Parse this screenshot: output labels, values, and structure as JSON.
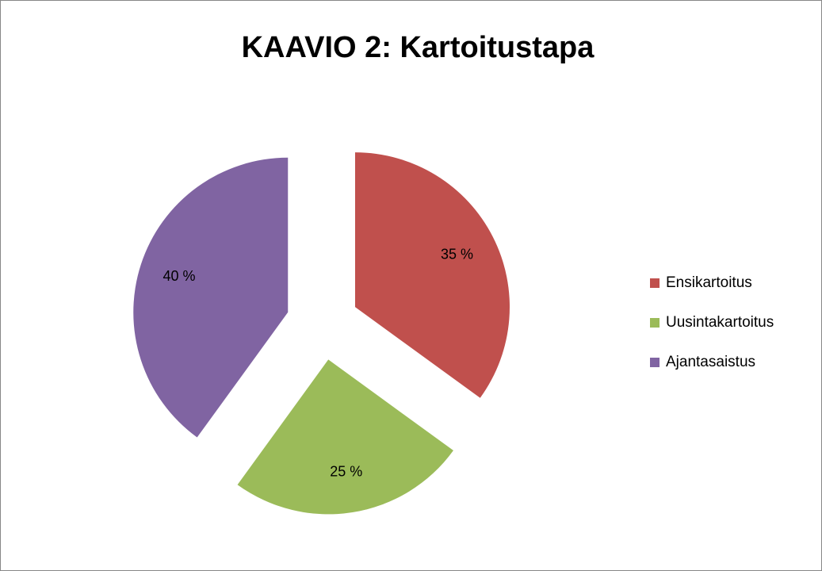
{
  "chart_data": {
    "type": "pie",
    "title": "KAAVIO 2: Kartoitustapa",
    "categories": [
      "Ensikartoitus",
      "Uusintakartoitus",
      "Ajantasaistus"
    ],
    "values": [
      35,
      25,
      40
    ],
    "value_labels": [
      "35 %",
      "25 %",
      "40 %"
    ],
    "colors": [
      "#c0504d",
      "#9bbb59",
      "#8064a2"
    ],
    "legend": "right"
  }
}
